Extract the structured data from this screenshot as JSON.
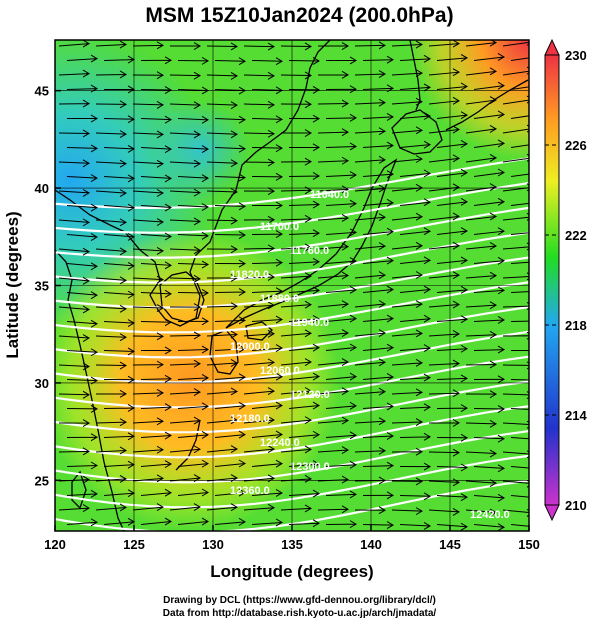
{
  "title": "MSM 15Z10Jan2024 (200.0hPa)",
  "axes": {
    "x_title": "Longitude (degrees)",
    "y_title": "Latitude  (degrees)",
    "x_ticks": [
      "120",
      "125",
      "130",
      "135",
      "140",
      "145",
      "150"
    ],
    "y_ticks": [
      "25",
      "30",
      "35",
      "40",
      "45"
    ],
    "x_range": [
      120,
      150
    ],
    "y_range": [
      22.4,
      47.6
    ]
  },
  "colorbar": {
    "labels": [
      "230",
      "226",
      "222",
      "218",
      "214",
      "210"
    ],
    "min": 210,
    "max": 230,
    "colors": [
      "#cc33cc",
      "#2233cc",
      "#22a8f0",
      "#22dd22",
      "#eeee22",
      "#ff9922",
      "#ee3344"
    ]
  },
  "contours": [
    {
      "label": "11640.0"
    },
    {
      "label": "11700.0"
    },
    {
      "label": "11760.0"
    },
    {
      "label": "11820.0"
    },
    {
      "label": "11880.0"
    },
    {
      "label": "11940.0"
    },
    {
      "label": "12000.0"
    },
    {
      "label": "12060.0"
    },
    {
      "label": "12120.0"
    },
    {
      "label": "12180.0"
    },
    {
      "label": "12240.0"
    },
    {
      "label": "12300.0"
    },
    {
      "label": "12360.0"
    },
    {
      "label": "12420.0"
    }
  ],
  "colors": {
    "contour": "#ffffff",
    "arrow": "#000000",
    "coast": "#000000"
  },
  "credit": {
    "line1": "Drawing by DCL (https://www.gfd-dennou.org/library/dcl/)",
    "line2": "Data from http://database.rish.kyoto-u.ac.jp/arch/jmadata/"
  }
}
